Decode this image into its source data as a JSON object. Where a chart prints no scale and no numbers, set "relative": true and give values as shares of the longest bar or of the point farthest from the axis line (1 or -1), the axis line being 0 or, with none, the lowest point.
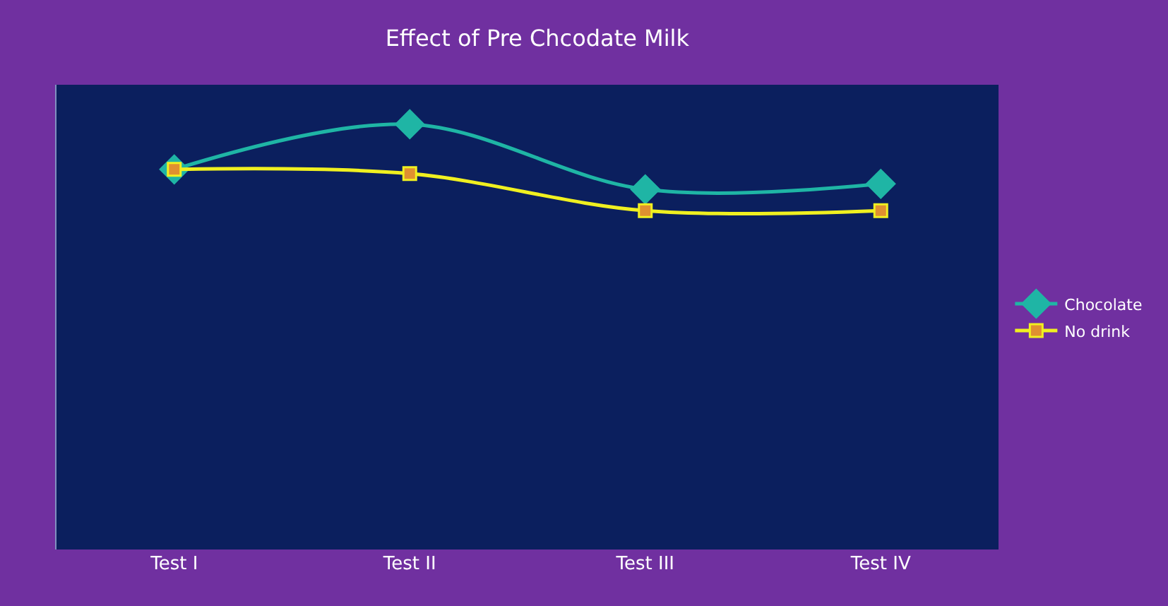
{
  "chart_data": {
    "type": "line",
    "title": "Effect of Pre Chcodate Milk",
    "categories": [
      "Test I",
      "Test II",
      "Test III",
      "Test IV"
    ],
    "relative": true,
    "legend": "right",
    "tick_labels": "x",
    "series": [
      {
        "name": "Chocolate",
        "color": "#1fb5a5",
        "marker": "diamond",
        "values": [
          0.894,
          1,
          0.847,
          0.86
        ]
      },
      {
        "name": "No drink",
        "color": "#f0f020",
        "marker": "square",
        "values": [
          0.894,
          0.884,
          0.797,
          0.797
        ]
      }
    ]
  }
}
